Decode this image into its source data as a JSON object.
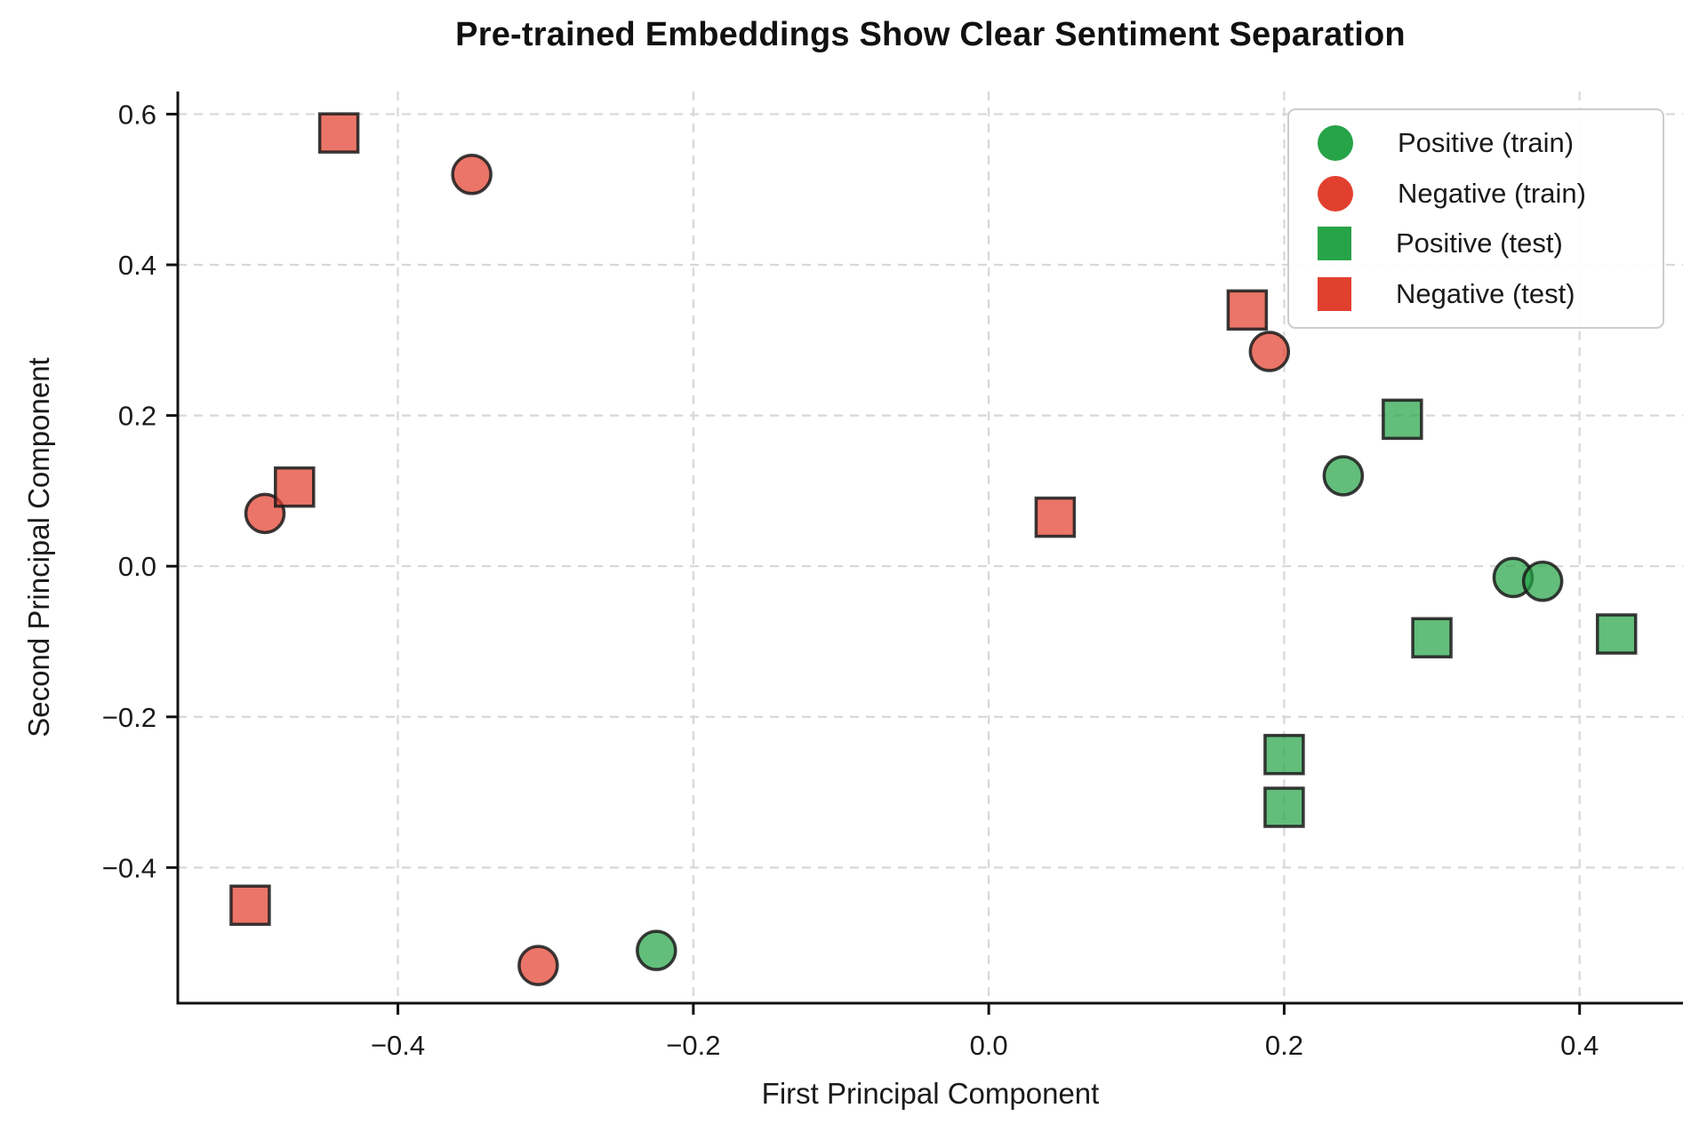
{
  "figure": {
    "title": "Pre-trained Embeddings Show Clear Sentiment Separation",
    "x_axis_label": "First Principal Component",
    "y_axis_label": "Second Principal Component"
  },
  "chart_data": {
    "type": "scatter",
    "title": "Pre-trained Embeddings Show Clear Sentiment Separation",
    "xlabel": "First Principal Component",
    "ylabel": "Second Principal Component",
    "xlim": [
      -0.549,
      0.47
    ],
    "ylim": [
      -0.58,
      0.63
    ],
    "x_ticks": {
      "values": [
        -0.4,
        -0.2,
        0.0,
        0.2,
        0.4
      ],
      "labels": [
        "−0.4",
        "−0.2",
        "0.0",
        "0.2",
        "0.4"
      ]
    },
    "y_ticks": {
      "values": [
        0.6,
        0.4,
        0.2,
        0.0,
        -0.2,
        -0.4
      ],
      "labels": [
        "0.6",
        "0.4",
        "0.2",
        "0.0",
        "−0.2",
        "−0.4"
      ]
    },
    "grid": "dashed",
    "grid_color": "#d8d8d8",
    "legend_position": "upper right",
    "marker_edge_color": "#1a1a1a",
    "marker_alpha": 0.72,
    "series": [
      {
        "name": "Positive (train)",
        "marker": "circle",
        "color": "#27a348",
        "points": [
          [
            0.24,
            0.12
          ],
          [
            0.355,
            -0.015
          ],
          [
            0.375,
            -0.02
          ],
          [
            -0.225,
            -0.51
          ]
        ]
      },
      {
        "name": "Negative (train)",
        "marker": "circle",
        "color": "#e2402e",
        "points": [
          [
            -0.35,
            0.52
          ],
          [
            -0.49,
            0.07
          ],
          [
            0.19,
            0.285
          ],
          [
            -0.305,
            -0.53
          ]
        ]
      },
      {
        "name": "Positive (test)",
        "marker": "square",
        "color": "#27a348",
        "points": [
          [
            0.28,
            0.195
          ],
          [
            0.3,
            -0.095
          ],
          [
            0.425,
            -0.09
          ],
          [
            0.2,
            -0.25
          ],
          [
            0.2,
            -0.32
          ]
        ]
      },
      {
        "name": "Negative (test)",
        "marker": "square",
        "color": "#e2402e",
        "points": [
          [
            -0.44,
            0.575
          ],
          [
            -0.47,
            0.105
          ],
          [
            0.175,
            0.34
          ],
          [
            0.045,
            0.065
          ],
          [
            -0.5,
            -0.45
          ]
        ]
      }
    ]
  }
}
